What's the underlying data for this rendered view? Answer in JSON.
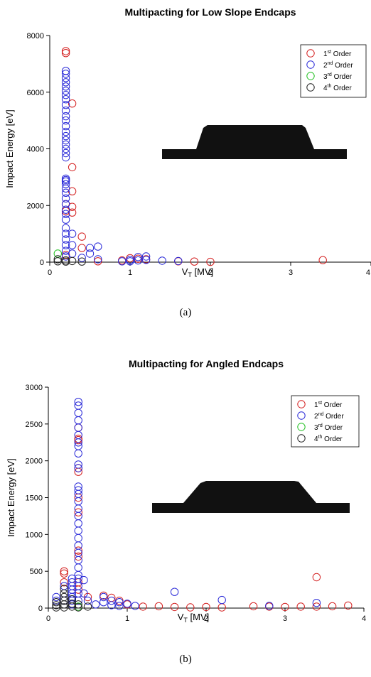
{
  "colors": {
    "order1": "#d42020",
    "order2": "#2a2ad8",
    "order3": "#22c022",
    "order4": "#222222",
    "shape": "#111111"
  },
  "chart_data": [
    {
      "type": "scatter",
      "title": "Multipacting for Low Slope Endcaps",
      "xlabel": "V",
      "xlabel_sub": "T",
      "xlabel_unit": " [MV]",
      "ylabel": "Impact Energy [eV]",
      "caption": "(a)",
      "xlim": [
        0,
        4
      ],
      "ylim": [
        0,
        8000
      ],
      "xticks": [
        0,
        1,
        2,
        3,
        4
      ],
      "yticks": [
        0,
        2000,
        4000,
        6000,
        8000
      ],
      "grid": false,
      "legend_position": "top-right",
      "inset": "low-slope-endcap-profile",
      "series": [
        {
          "name": "1",
          "name_sup": "st",
          "name_suffix": " Order",
          "color_key": "order1",
          "points": [
            [
              0.2,
              7450
            ],
            [
              0.2,
              7380
            ],
            [
              0.28,
              5600
            ],
            [
              0.28,
              3350
            ],
            [
              0.28,
              2500
            ],
            [
              0.2,
              2050
            ],
            [
              0.28,
              1950
            ],
            [
              0.28,
              1750
            ],
            [
              0.2,
              1800
            ],
            [
              0.4,
              900
            ],
            [
              0.4,
              500
            ],
            [
              0.2,
              250
            ],
            [
              0.6,
              30
            ],
            [
              0.9,
              60
            ],
            [
              1.0,
              140
            ],
            [
              1.1,
              120
            ],
            [
              1.2,
              100
            ],
            [
              1.6,
              30
            ],
            [
              1.8,
              20
            ],
            [
              2.0,
              10
            ],
            [
              3.4,
              70
            ]
          ]
        },
        {
          "name": "2",
          "name_sup": "nd",
          "name_suffix": " Order",
          "color_key": "order2",
          "points": [
            [
              0.2,
              6750
            ],
            [
              0.2,
              6650
            ],
            [
              0.2,
              6500
            ],
            [
              0.2,
              6350
            ],
            [
              0.2,
              6200
            ],
            [
              0.2,
              6050
            ],
            [
              0.2,
              5900
            ],
            [
              0.2,
              5750
            ],
            [
              0.2,
              5550
            ],
            [
              0.2,
              5350
            ],
            [
              0.2,
              5150
            ],
            [
              0.2,
              5000
            ],
            [
              0.2,
              4800
            ],
            [
              0.2,
              4600
            ],
            [
              0.2,
              4450
            ],
            [
              0.2,
              4300
            ],
            [
              0.2,
              4150
            ],
            [
              0.2,
              4000
            ],
            [
              0.2,
              3850
            ],
            [
              0.2,
              3700
            ],
            [
              0.2,
              2950
            ],
            [
              0.2,
              2900
            ],
            [
              0.2,
              2850
            ],
            [
              0.2,
              2750
            ],
            [
              0.2,
              2600
            ],
            [
              0.2,
              2450
            ],
            [
              0.2,
              2250
            ],
            [
              0.2,
              2050
            ],
            [
              0.2,
              1850
            ],
            [
              0.2,
              1700
            ],
            [
              0.2,
              1500
            ],
            [
              0.2,
              1200
            ],
            [
              0.2,
              1000
            ],
            [
              0.2,
              800
            ],
            [
              0.2,
              600
            ],
            [
              0.2,
              400
            ],
            [
              0.2,
              200
            ],
            [
              0.28,
              1000
            ],
            [
              0.28,
              600
            ],
            [
              0.28,
              300
            ],
            [
              0.4,
              150
            ],
            [
              0.5,
              500
            ],
            [
              0.5,
              300
            ],
            [
              0.6,
              550
            ],
            [
              0.6,
              100
            ],
            [
              0.9,
              30
            ],
            [
              1.0,
              80
            ],
            [
              1.0,
              30
            ],
            [
              1.1,
              180
            ],
            [
              1.1,
              60
            ],
            [
              1.2,
              200
            ],
            [
              1.2,
              80
            ],
            [
              1.4,
              50
            ],
            [
              1.6,
              40
            ]
          ]
        },
        {
          "name": "3",
          "name_sup": "rd",
          "name_suffix": " Order",
          "color_key": "order3",
          "points": [
            [
              0.1,
              300
            ]
          ]
        },
        {
          "name": "4",
          "name_sup": "th",
          "name_suffix": " Order",
          "color_key": "order4",
          "points": [
            [
              0.1,
              100
            ],
            [
              0.1,
              30
            ],
            [
              0.2,
              60
            ],
            [
              0.2,
              20
            ],
            [
              0.28,
              40
            ],
            [
              0.4,
              20
            ]
          ]
        }
      ]
    },
    {
      "type": "scatter",
      "title": "Multipacting for Angled Endcaps",
      "xlabel": "V",
      "xlabel_sub": "T",
      "xlabel_unit": " [MV]",
      "ylabel": "Impact Energy [eV]",
      "caption": "(b)",
      "xlim": [
        0,
        4
      ],
      "ylim": [
        0,
        3000
      ],
      "xticks": [
        0,
        1,
        2,
        3,
        4
      ],
      "yticks": [
        0,
        500,
        1000,
        1500,
        2000,
        2500,
        3000
      ],
      "grid": false,
      "legend_position": "top-right",
      "inset": "angled-endcap-profile",
      "series": [
        {
          "name": "1",
          "name_sup": "st",
          "name_suffix": " Order",
          "color_key": "order1",
          "points": [
            [
              0.2,
              500
            ],
            [
              0.2,
              470
            ],
            [
              0.2,
              350
            ],
            [
              0.38,
              2450
            ],
            [
              0.38,
              2300
            ],
            [
              0.38,
              2280
            ],
            [
              0.38,
              1900
            ],
            [
              0.38,
              1850
            ],
            [
              0.38,
              1500
            ],
            [
              0.38,
              1300
            ],
            [
              0.38,
              780
            ],
            [
              0.38,
              700
            ],
            [
              0.38,
              350
            ],
            [
              0.38,
              250
            ],
            [
              0.5,
              150
            ],
            [
              0.7,
              170
            ],
            [
              0.8,
              140
            ],
            [
              0.9,
              100
            ],
            [
              1.0,
              50
            ],
            [
              1.2,
              20
            ],
            [
              1.4,
              25
            ],
            [
              1.6,
              15
            ],
            [
              1.8,
              10
            ],
            [
              2.0,
              15
            ],
            [
              2.2,
              10
            ],
            [
              2.6,
              25
            ],
            [
              2.8,
              20
            ],
            [
              3.0,
              15
            ],
            [
              3.2,
              20
            ],
            [
              3.4,
              420
            ],
            [
              3.4,
              20
            ],
            [
              3.6,
              25
            ],
            [
              3.8,
              35
            ]
          ]
        },
        {
          "name": "2",
          "name_sup": "nd",
          "name_suffix": " Order",
          "color_key": "order2",
          "points": [
            [
              0.1,
              150
            ],
            [
              0.1,
              100
            ],
            [
              0.2,
              300
            ],
            [
              0.2,
              200
            ],
            [
              0.2,
              100
            ],
            [
              0.3,
              400
            ],
            [
              0.3,
              350
            ],
            [
              0.3,
              300
            ],
            [
              0.3,
              250
            ],
            [
              0.3,
              200
            ],
            [
              0.3,
              150
            ],
            [
              0.3,
              100
            ],
            [
              0.3,
              50
            ],
            [
              0.38,
              2800
            ],
            [
              0.38,
              2750
            ],
            [
              0.38,
              2650
            ],
            [
              0.38,
              2550
            ],
            [
              0.38,
              2450
            ],
            [
              0.38,
              2350
            ],
            [
              0.38,
              2250
            ],
            [
              0.38,
              2200
            ],
            [
              0.38,
              2100
            ],
            [
              0.38,
              1950
            ],
            [
              0.38,
              1900
            ],
            [
              0.38,
              1650
            ],
            [
              0.38,
              1600
            ],
            [
              0.38,
              1550
            ],
            [
              0.38,
              1450
            ],
            [
              0.38,
              1350
            ],
            [
              0.38,
              1250
            ],
            [
              0.38,
              1150
            ],
            [
              0.38,
              1050
            ],
            [
              0.38,
              950
            ],
            [
              0.38,
              850
            ],
            [
              0.38,
              750
            ],
            [
              0.38,
              650
            ],
            [
              0.38,
              550
            ],
            [
              0.38,
              450
            ],
            [
              0.38,
              400
            ],
            [
              0.38,
              300
            ],
            [
              0.38,
              200
            ],
            [
              0.38,
              100
            ],
            [
              0.45,
              380
            ],
            [
              0.45,
              200
            ],
            [
              0.5,
              100
            ],
            [
              0.6,
              50
            ],
            [
              0.7,
              150
            ],
            [
              0.7,
              80
            ],
            [
              0.8,
              100
            ],
            [
              0.8,
              40
            ],
            [
              0.9,
              80
            ],
            [
              0.9,
              30
            ],
            [
              1.0,
              60
            ],
            [
              1.1,
              30
            ],
            [
              1.6,
              220
            ],
            [
              2.2,
              110
            ],
            [
              2.8,
              30
            ],
            [
              3.4,
              70
            ]
          ]
        },
        {
          "name": "3",
          "name_sup": "rd",
          "name_suffix": " Order",
          "color_key": "order3",
          "points": [
            [
              0.38,
              20
            ]
          ]
        },
        {
          "name": "4",
          "name_sup": "th",
          "name_suffix": " Order",
          "color_key": "order4",
          "points": [
            [
              0.1,
              80
            ],
            [
              0.1,
              40
            ],
            [
              0.1,
              10
            ],
            [
              0.2,
              260
            ],
            [
              0.2,
              200
            ],
            [
              0.2,
              150
            ],
            [
              0.2,
              100
            ],
            [
              0.2,
              50
            ],
            [
              0.2,
              10
            ],
            [
              0.3,
              120
            ],
            [
              0.3,
              60
            ],
            [
              0.3,
              20
            ],
            [
              0.38,
              50
            ],
            [
              0.38,
              10
            ],
            [
              0.5,
              20
            ]
          ]
        }
      ]
    }
  ]
}
